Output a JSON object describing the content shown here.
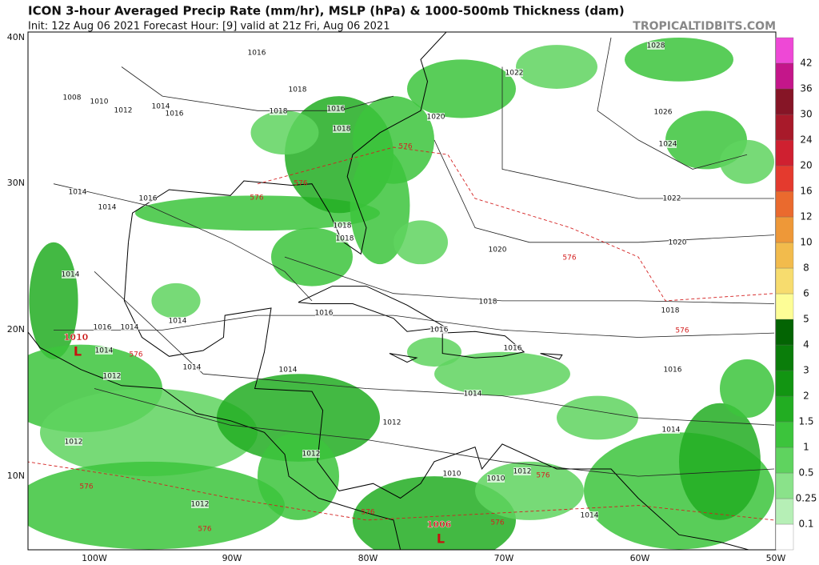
{
  "header": {
    "title": "ICON 3-hour Averaged Precip Rate (mm/hr), MSLP (hPa) & 1000-500mb Thickness (dam)",
    "subtitle": "Init: 12z Aug 06 2021   Forecast Hour: [9]   valid at 21z Fri, Aug 06 2021",
    "watermark": "TROPICALTIDBITS.COM"
  },
  "axes": {
    "lat_labels": [
      "40N",
      "30N",
      "20N",
      "10N"
    ],
    "lon_labels": [
      "100W",
      "90W",
      "80W",
      "70W",
      "60W",
      "50W"
    ]
  },
  "colorbar": {
    "labels": [
      "0.1",
      "0.25",
      "0.5",
      "1",
      "1.5",
      "2",
      "3",
      "4",
      "5",
      "6",
      "8",
      "10",
      "12",
      "16",
      "20",
      "24",
      "30",
      "36",
      "42"
    ],
    "colors": [
      "#ffffff",
      "#b6efb6",
      "#8ae28a",
      "#5fd35f",
      "#3cc43c",
      "#22ad22",
      "#129512",
      "#0a7d0a",
      "#036403",
      "#fdfd96",
      "#f7dc6e",
      "#f2bb4c",
      "#ee9838",
      "#ea6a2e",
      "#e43a2e",
      "#cf2030",
      "#a81a2a",
      "#861526",
      "#c4168a",
      "#ee48d6"
    ]
  },
  "isobar_labels": [
    "1016",
    "1008",
    "1010",
    "1012",
    "1014",
    "1016",
    "1018",
    "1018",
    "1016",
    "1020",
    "1022",
    "1028",
    "1026",
    "1024",
    "1022",
    "1020",
    "1020",
    "1018",
    "1018",
    "1018",
    "1018",
    "1018",
    "1016",
    "1016",
    "1016",
    "1016",
    "1014",
    "1014",
    "1016",
    "1014",
    "1014",
    "1014",
    "1014",
    "1012",
    "1012",
    "1012",
    "1012",
    "1012",
    "1016",
    "1014",
    "1014",
    "1014",
    "1014",
    "1012",
    "1010",
    "1010",
    "1014"
  ],
  "thickness_labels": [
    "576",
    "576",
    "576",
    "576",
    "576",
    "576",
    "576",
    "576",
    "576",
    "576",
    "576"
  ],
  "lows": [
    {
      "pressure": "1010",
      "symbol": "L"
    },
    {
      "pressure": "1006",
      "symbol": "L"
    }
  ]
}
